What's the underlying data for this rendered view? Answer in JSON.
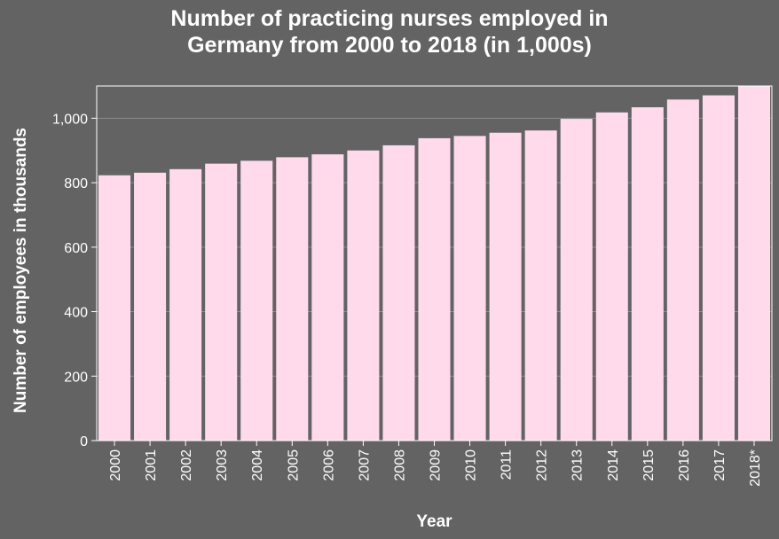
{
  "chart_data": {
    "type": "bar",
    "title_line1": "Number of practicing nurses employed in",
    "title_line2": "Germany from 2000 to 2018 (in 1,000s)",
    "xlabel": "Year",
    "ylabel": "Number of employees in thousands",
    "categories": [
      "2000",
      "2001",
      "2002",
      "2003",
      "2004",
      "2005",
      "2006",
      "2007",
      "2008",
      "2009",
      "2010",
      "2011",
      "2012",
      "2013",
      "2014",
      "2015",
      "2016",
      "2017",
      "2018*"
    ],
    "values": [
      823,
      831,
      842,
      859,
      868,
      879,
      888,
      900,
      916,
      938,
      945,
      955,
      962,
      998,
      1018,
      1034,
      1058,
      1071,
      1100
    ],
    "ylim": [
      0,
      1100
    ],
    "yticks": [
      0,
      200,
      400,
      600,
      800,
      1000
    ],
    "ytick_labels": [
      "0",
      "200",
      "400",
      "600",
      "800",
      "1,000"
    ],
    "grid": true,
    "colors": {
      "background": "#636363",
      "bar": "#ffdaeb",
      "grid": "#8c8c8c",
      "text": "#ffffff"
    }
  }
}
